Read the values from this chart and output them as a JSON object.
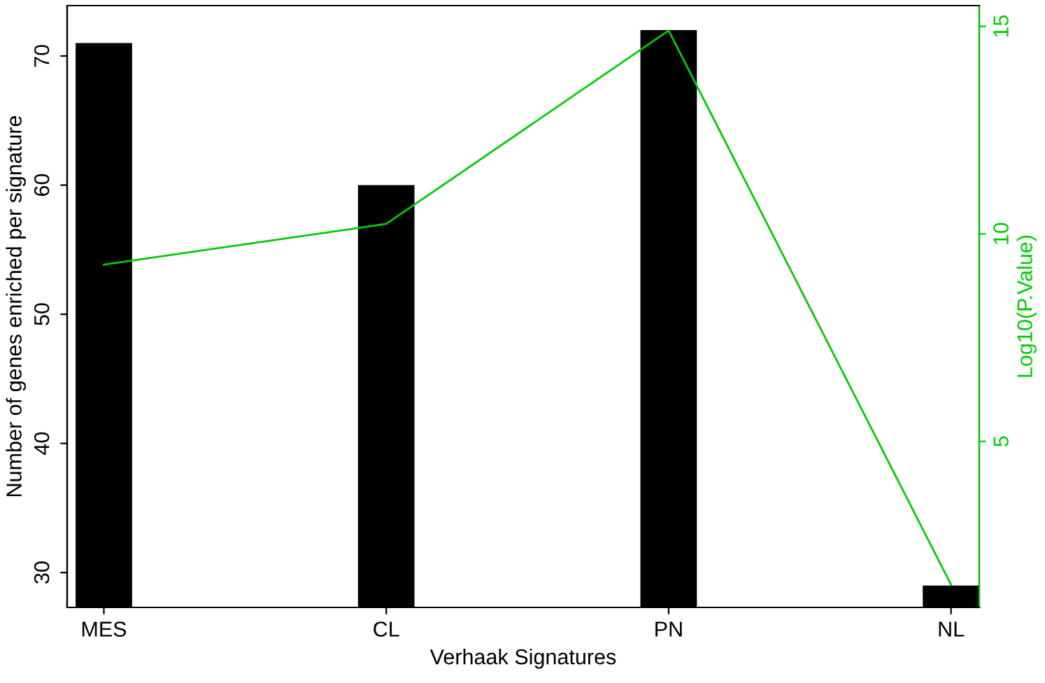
{
  "chart_data": {
    "type": "bar",
    "xlabel": "Verhaak Signatures",
    "ylabel": "Number of genes enriched per signature",
    "y2label": "Log10(P.Value)",
    "categories": [
      "MES",
      "CL",
      "PN",
      "NL"
    ],
    "series": [
      {
        "color": "#000000",
        "values": [
          71,
          60,
          72,
          29
        ]
      },
      {
        "type": "line",
        "axis": "y2",
        "color": "#00cc00",
        "values": [
          9.26,
          10.24,
          14.9,
          1.55
        ]
      }
    ],
    "ylim": [
      27.3,
      73.9
    ],
    "yticks": [
      30,
      40,
      50,
      60,
      70
    ],
    "y2lim": [
      1.0,
      15.5
    ],
    "y2ticks": [
      5,
      10,
      15
    ],
    "grid": false,
    "marker": "none",
    "line_style": "solid"
  }
}
